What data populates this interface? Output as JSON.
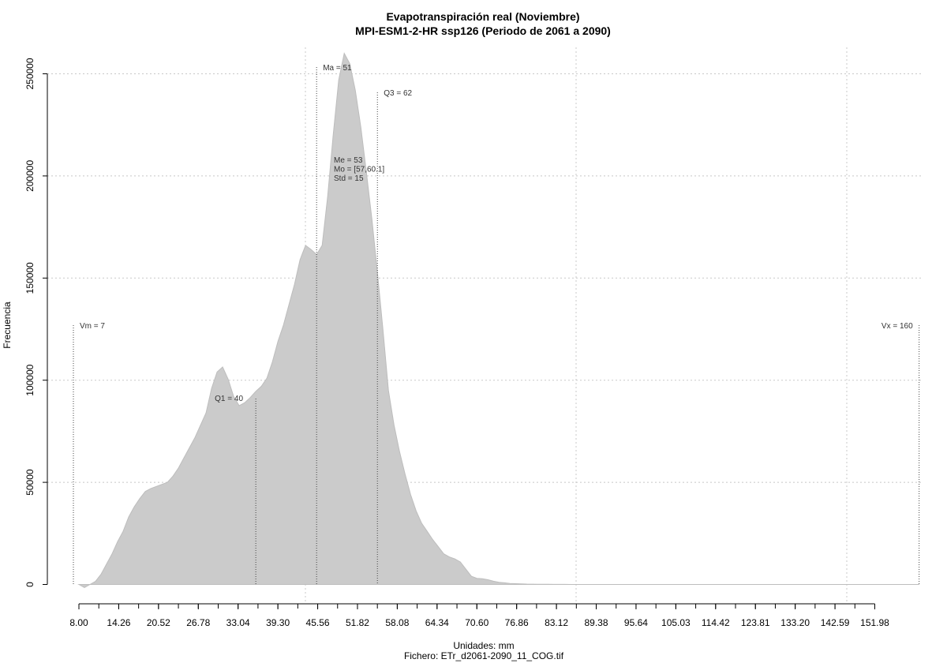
{
  "chart_data": {
    "type": "area",
    "title": "Evapotranspiración real (Noviembre)",
    "subtitle": "MPI-ESM1-2-HR ssp126 (Periodo de 2061 a 2090)",
    "xlabel": "Unidades: mm",
    "ylabel": "Frecuencia",
    "footer": "Fichero: ETr_d2061-2090_11_COG.tif",
    "xlim": [
      7,
      160
    ],
    "ylim": [
      0,
      260000
    ],
    "x_ticks": [
      "8.00",
      "14.26",
      "20.52",
      "26.78",
      "33.04",
      "39.30",
      "45.56",
      "51.82",
      "58.08",
      "64.34",
      "70.60",
      "76.86",
      "83.12",
      "89.38",
      "95.64",
      "105.03",
      "114.42",
      "123.81",
      "133.20",
      "142.59",
      "151.98"
    ],
    "y_ticks": [
      0,
      50000,
      100000,
      150000,
      200000,
      250000
    ],
    "grid": true,
    "series": [
      {
        "x": [
          8,
          9,
          10,
          11,
          12,
          13,
          14,
          15,
          16,
          17,
          18,
          19,
          20,
          21,
          22,
          23,
          24,
          25,
          26,
          27,
          28,
          29,
          30,
          31,
          32,
          33,
          34,
          35,
          36,
          37,
          38,
          39,
          40,
          41,
          42,
          43,
          44,
          45,
          46,
          47,
          48,
          49,
          50,
          51,
          52,
          53,
          54,
          55,
          56,
          57,
          58,
          59,
          60,
          61,
          62,
          63,
          64,
          65,
          66,
          67,
          68,
          69,
          70,
          71,
          72,
          73,
          74,
          75,
          76,
          77,
          78,
          79,
          80,
          81,
          82,
          83,
          84,
          85,
          86,
          87,
          88,
          89,
          90,
          91,
          92,
          93,
          94,
          95,
          96,
          97,
          98,
          99,
          100,
          105,
          110,
          115,
          120,
          125,
          130,
          135,
          140,
          145,
          150,
          155,
          160
        ],
        "values": [
          0,
          -1500,
          0,
          1500,
          5000,
          10000,
          15000,
          21000,
          26000,
          33000,
          38000,
          42000,
          45500,
          47000,
          48000,
          49000,
          50000,
          53000,
          57000,
          62000,
          67000,
          72000,
          78000,
          84000,
          96000,
          104000,
          106500,
          100500,
          92000,
          87500,
          89000,
          91500,
          94500,
          97000,
          101000,
          109000,
          119000,
          127000,
          137000,
          147000,
          159000,
          166000,
          164000,
          161500,
          166000,
          190000,
          220000,
          247000,
          260000,
          255000,
          242000,
          224000,
          202000,
          179000,
          153000,
          125000,
          95000,
          78000,
          65000,
          54000,
          44000,
          36000,
          30000,
          26000,
          22000,
          18500,
          15000,
          13500,
          12500,
          11000,
          7500,
          4000,
          3000,
          2800,
          2300,
          1600,
          1100,
          800,
          500,
          400,
          300,
          200,
          150,
          100,
          80,
          60,
          40,
          30,
          20,
          10,
          0,
          0,
          0,
          0,
          0,
          0,
          0,
          0,
          0,
          0,
          0,
          0,
          0,
          0,
          0
        ]
      }
    ],
    "annotations": [
      {
        "label": "Vm = 7",
        "x": 7
      },
      {
        "label": "Q1 = 40",
        "x": 40
      },
      {
        "label": "Ma = 51",
        "x": 51
      },
      {
        "label": "Q3 = 62",
        "x": 62
      },
      {
        "label": "Vx = 160",
        "x": 160
      }
    ],
    "stats": [
      "Me = 53",
      "Mo = [57,60.1]",
      "Std = 15"
    ]
  }
}
